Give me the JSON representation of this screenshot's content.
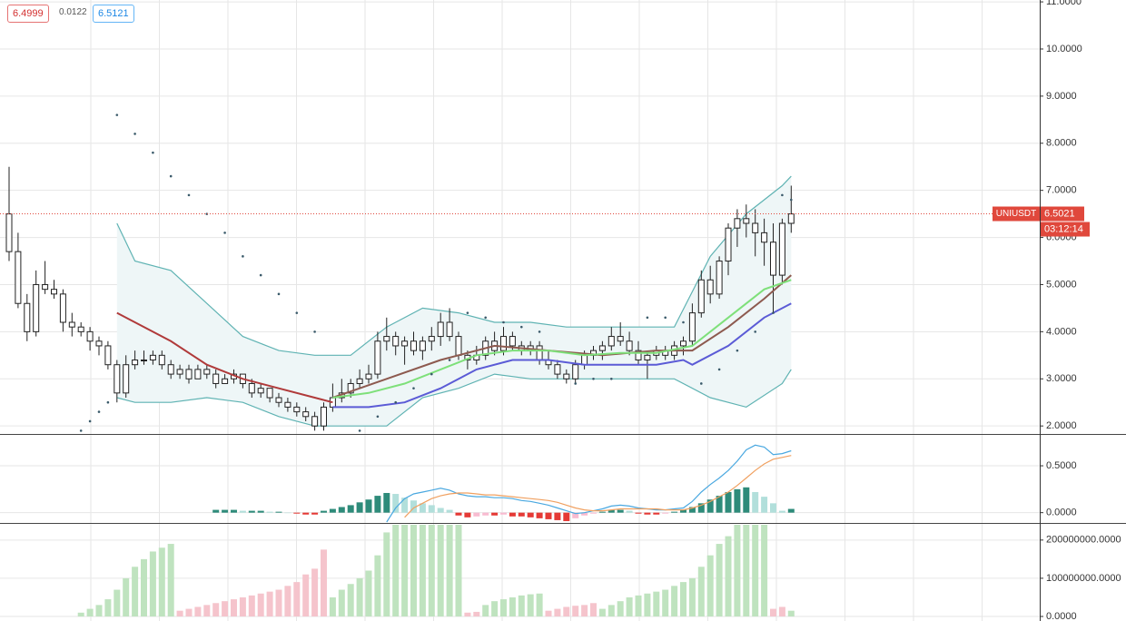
{
  "header": {
    "values": [
      "6.4999",
      "0.0122",
      "6.5121"
    ]
  },
  "chart_data": [
    {
      "type": "candlestick",
      "open": [
        6.5,
        5.7,
        4.6,
        4.0,
        5.0,
        4.9,
        4.8,
        4.2,
        4.1,
        4.0,
        3.8,
        3.7,
        3.3,
        2.7,
        3.3,
        3.4,
        3.4,
        3.5,
        3.3,
        3.1,
        3.2,
        3.0,
        3.2,
        3.1,
        2.9,
        3.0,
        3.1,
        2.9,
        2.7,
        2.8,
        2.6,
        2.5,
        2.4,
        2.3,
        2.2,
        2.0,
        2.4,
        2.6,
        2.7,
        2.9,
        3.0,
        3.1,
        3.8,
        3.9,
        3.7,
        3.8,
        3.6,
        3.8,
        3.9,
        4.2,
        3.9,
        3.5,
        3.4,
        3.5,
        3.8,
        3.6,
        3.9,
        3.7,
        3.6,
        3.7,
        3.4,
        3.3,
        3.1,
        3.0,
        3.3,
        3.5,
        3.6,
        3.7,
        3.9,
        3.8,
        3.6,
        3.4,
        3.5,
        3.6,
        3.5,
        3.7,
        3.8,
        4.4,
        5.1,
        4.8,
        5.5,
        6.2,
        6.4,
        6.3,
        6.1,
        5.9,
        5.2,
        6.3
      ],
      "high": [
        7.5,
        6.1,
        4.8,
        5.3,
        5.5,
        5.1,
        4.9,
        4.4,
        4.2,
        4.1,
        3.9,
        3.8,
        3.4,
        3.5,
        3.6,
        3.6,
        3.6,
        3.6,
        3.4,
        3.3,
        3.3,
        3.3,
        3.3,
        3.2,
        3.1,
        3.2,
        3.1,
        3.0,
        2.9,
        2.8,
        2.7,
        2.6,
        2.5,
        2.4,
        2.3,
        2.5,
        2.9,
        3.0,
        3.0,
        3.2,
        3.3,
        4.0,
        4.3,
        4.0,
        3.9,
        4.0,
        3.9,
        4.1,
        4.4,
        4.5,
        4.0,
        3.6,
        3.7,
        3.9,
        4.0,
        4.1,
        4.0,
        3.8,
        3.8,
        3.8,
        3.6,
        3.4,
        3.2,
        3.4,
        3.6,
        3.7,
        3.8,
        4.1,
        4.2,
        4.0,
        3.8,
        3.6,
        3.7,
        3.7,
        3.8,
        3.9,
        4.6,
        5.3,
        5.4,
        5.6,
        6.3,
        6.6,
        6.7,
        6.6,
        6.4,
        6.3,
        6.4,
        7.1
      ],
      "low": [
        5.5,
        4.5,
        3.8,
        3.9,
        4.8,
        4.7,
        4.0,
        3.9,
        3.9,
        3.6,
        3.5,
        3.2,
        2.5,
        2.6,
        3.2,
        3.3,
        3.3,
        3.2,
        3.0,
        3.0,
        2.9,
        3.0,
        3.0,
        2.8,
        2.9,
        2.9,
        2.8,
        2.6,
        2.6,
        2.5,
        2.4,
        2.3,
        2.2,
        2.1,
        1.9,
        1.9,
        2.3,
        2.5,
        2.6,
        2.8,
        2.9,
        3.0,
        3.6,
        3.5,
        3.3,
        3.5,
        3.4,
        3.6,
        3.7,
        3.8,
        3.4,
        3.2,
        3.3,
        3.4,
        3.5,
        3.5,
        3.6,
        3.5,
        3.5,
        3.3,
        3.2,
        3.0,
        2.9,
        2.9,
        3.2,
        3.4,
        3.4,
        3.6,
        3.7,
        3.5,
        3.3,
        3.0,
        3.4,
        3.4,
        3.4,
        3.5,
        3.7,
        4.3,
        4.6,
        4.7,
        5.2,
        5.8,
        6.0,
        5.6,
        5.4,
        4.4,
        5.0,
        6.1
      ],
      "close": [
        5.7,
        4.6,
        4.0,
        5.0,
        4.9,
        4.8,
        4.2,
        4.1,
        4.0,
        3.8,
        3.7,
        3.3,
        2.7,
        3.3,
        3.4,
        3.4,
        3.5,
        3.3,
        3.1,
        3.2,
        3.0,
        3.2,
        3.1,
        2.9,
        3.0,
        3.1,
        2.9,
        2.7,
        2.8,
        2.6,
        2.5,
        2.4,
        2.3,
        2.2,
        2.0,
        2.4,
        2.6,
        2.7,
        2.9,
        3.0,
        3.1,
        3.8,
        3.9,
        3.7,
        3.8,
        3.6,
        3.8,
        3.9,
        4.2,
        3.9,
        3.5,
        3.4,
        3.5,
        3.8,
        3.6,
        3.9,
        3.7,
        3.6,
        3.7,
        3.4,
        3.3,
        3.1,
        3.0,
        3.3,
        3.5,
        3.6,
        3.7,
        3.9,
        3.8,
        3.6,
        3.4,
        3.5,
        3.6,
        3.5,
        3.7,
        3.8,
        4.4,
        5.1,
        4.8,
        5.5,
        6.2,
        6.4,
        6.3,
        6.1,
        5.9,
        5.2,
        6.3,
        6.5
      ],
      "color": "#222222",
      "fill": "#ffffff",
      "band": {
        "color": "#5fb3b3",
        "fill": "#eef6f7",
        "x": [
          12,
          14,
          18,
          22,
          26,
          30,
          34,
          38,
          42,
          46,
          50,
          54,
          58,
          62,
          66,
          70,
          74,
          78,
          82,
          86,
          87
        ],
        "upper": [
          6.3,
          5.5,
          5.3,
          4.6,
          3.9,
          3.6,
          3.5,
          3.5,
          4.1,
          4.5,
          4.4,
          4.2,
          4.2,
          4.1,
          4.1,
          4.1,
          4.1,
          5.6,
          6.5,
          7.1,
          7.3
        ],
        "lower": [
          2.6,
          2.5,
          2.5,
          2.6,
          2.5,
          2.2,
          2.0,
          2.0,
          2.0,
          2.6,
          2.8,
          3.1,
          3.0,
          3.0,
          3.0,
          3.0,
          3.0,
          2.6,
          2.4,
          2.9,
          3.2
        ]
      },
      "series": [
        {
          "style": "line",
          "color": "#b03a3a",
          "x": [
            12,
            14,
            18,
            22,
            26,
            30,
            34,
            36
          ],
          "values": [
            4.4,
            4.2,
            3.8,
            3.3,
            3.0,
            2.8,
            2.6,
            2.5
          ]
        },
        {
          "style": "line",
          "color": "#8d5a4f",
          "x": [
            36,
            42,
            48,
            54,
            60,
            66,
            72,
            76,
            80,
            84,
            87
          ],
          "values": [
            2.6,
            3.0,
            3.4,
            3.7,
            3.6,
            3.5,
            3.6,
            3.6,
            4.1,
            4.7,
            5.2
          ]
        },
        {
          "style": "line",
          "color": "#7ee07a",
          "x": [
            36,
            40,
            44,
            48,
            52,
            56,
            60,
            64,
            68,
            72,
            76,
            80,
            84,
            87
          ],
          "values": [
            2.6,
            2.7,
            2.9,
            3.2,
            3.5,
            3.6,
            3.6,
            3.5,
            3.55,
            3.55,
            3.7,
            4.3,
            4.9,
            5.1
          ]
        },
        {
          "style": "line",
          "color": "#5b5bd6",
          "x": [
            36,
            40,
            44,
            48,
            52,
            56,
            60,
            64,
            68,
            72,
            75,
            76,
            80,
            84,
            87
          ],
          "values": [
            2.4,
            2.4,
            2.5,
            2.8,
            3.2,
            3.4,
            3.4,
            3.3,
            3.3,
            3.3,
            3.4,
            3.3,
            3.7,
            4.3,
            4.6
          ]
        },
        {
          "style": "dots",
          "color": "#3a5a6a",
          "x": [
            8,
            9,
            10,
            11,
            12,
            14,
            16,
            18,
            20,
            22,
            24,
            26,
            28,
            30,
            32,
            34,
            39,
            41,
            43,
            45,
            47,
            49,
            51,
            53,
            55,
            57,
            59,
            63,
            65,
            67,
            71,
            73,
            75,
            77,
            79,
            81,
            83,
            85,
            86,
            87
          ],
          "values": [
            1.9,
            2.1,
            2.3,
            2.5,
            8.6,
            8.2,
            7.8,
            7.3,
            6.9,
            6.5,
            6.1,
            5.6,
            5.2,
            4.8,
            4.4,
            4.0,
            1.9,
            2.2,
            2.5,
            2.8,
            3.1,
            3.4,
            4.4,
            4.3,
            4.2,
            4.1,
            4.0,
            2.9,
            3.0,
            3.0,
            4.3,
            4.3,
            4.2,
            2.9,
            3.2,
            3.6,
            4.0,
            4.4,
            6.9,
            6.8
          ]
        }
      ],
      "ylim": [
        1.83,
        11.04
      ],
      "yticks": [
        {
          "value": 2,
          "label": "2.0000"
        },
        {
          "value": 3,
          "label": "3.0000"
        },
        {
          "value": 4,
          "label": "4.0000"
        },
        {
          "value": 5,
          "label": "5.0000"
        },
        {
          "value": 6,
          "label": "6.0000"
        },
        {
          "value": 7,
          "label": "7.0000"
        },
        {
          "value": 8,
          "label": "8.0000"
        },
        {
          "value": 9,
          "label": "9.0000"
        },
        {
          "value": 10,
          "label": "10.0000"
        },
        {
          "value": 11,
          "label": "11.0000"
        }
      ],
      "grid": true,
      "last_price": {
        "symbol": "UNIUSDT",
        "value": 6.5021,
        "countdown": "03:12:14",
        "color": "#e0483c"
      }
    },
    {
      "type": "macd",
      "histogram": [
        null,
        null,
        null,
        null,
        null,
        null,
        null,
        null,
        null,
        null,
        null,
        null,
        null,
        null,
        null,
        null,
        null,
        null,
        null,
        null,
        null,
        null,
        null,
        0.03,
        0.03,
        0.03,
        0.02,
        0.02,
        0.02,
        0.01,
        0.01,
        0.0,
        -0.01,
        -0.02,
        -0.02,
        0.02,
        0.04,
        0.06,
        0.08,
        0.11,
        0.14,
        0.18,
        0.21,
        0.2,
        0.16,
        0.13,
        0.1,
        0.08,
        0.05,
        0.03,
        -0.03,
        -0.05,
        -0.04,
        -0.03,
        -0.03,
        -0.02,
        -0.04,
        -0.04,
        -0.05,
        -0.06,
        -0.07,
        -0.08,
        -0.09,
        -0.06,
        -0.03,
        -0.01,
        0.01,
        0.03,
        0.03,
        0.02,
        -0.01,
        -0.02,
        -0.02,
        -0.01,
        0.01,
        0.03,
        0.06,
        0.1,
        0.14,
        0.18,
        0.22,
        0.25,
        0.27,
        0.22,
        0.17,
        0.1,
        0.02,
        0.04
      ],
      "colors": [
        "#2e8b7a",
        "#b2dfdb",
        "#e53935",
        "#f8bbd0"
      ],
      "series": [
        {
          "color": "#4aa8e0",
          "values": [
            null,
            null,
            null,
            null,
            null,
            null,
            null,
            null,
            null,
            null,
            null,
            null,
            null,
            null,
            null,
            null,
            null,
            null,
            null,
            null,
            null,
            null,
            null,
            null,
            null,
            null,
            null,
            null,
            null,
            null,
            null,
            null,
            null,
            null,
            null,
            null,
            null,
            null,
            null,
            null,
            null,
            null,
            -0.1,
            0.05,
            0.15,
            0.2,
            0.22,
            0.24,
            0.26,
            0.24,
            0.2,
            0.18,
            0.17,
            0.17,
            0.16,
            0.16,
            0.15,
            0.13,
            0.12,
            0.1,
            0.08,
            0.05,
            0.02,
            -0.01,
            0.0,
            0.02,
            0.04,
            0.07,
            0.08,
            0.07,
            0.05,
            0.04,
            0.03,
            0.03,
            0.04,
            0.05,
            0.12,
            0.22,
            0.3,
            0.37,
            0.45,
            0.55,
            0.67,
            0.72,
            0.7,
            0.62,
            0.63,
            0.66
          ]
        },
        {
          "color": "#f0a060",
          "values": [
            null,
            null,
            null,
            null,
            null,
            null,
            null,
            null,
            null,
            null,
            null,
            null,
            null,
            null,
            null,
            null,
            null,
            null,
            null,
            null,
            null,
            null,
            null,
            null,
            null,
            null,
            null,
            null,
            null,
            null,
            null,
            null,
            null,
            null,
            null,
            null,
            null,
            null,
            null,
            null,
            null,
            null,
            null,
            null,
            -0.05,
            0.05,
            0.1,
            0.15,
            0.18,
            0.2,
            0.21,
            0.21,
            0.2,
            0.19,
            0.19,
            0.18,
            0.17,
            0.16,
            0.15,
            0.14,
            0.13,
            0.11,
            0.08,
            0.05,
            0.03,
            0.02,
            0.02,
            0.03,
            0.04,
            0.04,
            0.04,
            0.04,
            0.04,
            0.03,
            0.03,
            0.03,
            0.05,
            0.08,
            0.12,
            0.17,
            0.22,
            0.29,
            0.37,
            0.45,
            0.52,
            0.57,
            0.59,
            0.61
          ]
        }
      ],
      "ylim": [
        -0.1,
        0.82
      ],
      "yticks": [
        {
          "value": 0,
          "label": "0.0000"
        },
        {
          "value": 0.5,
          "label": "0.5000"
        }
      ]
    },
    {
      "type": "bar",
      "series": [
        {
          "color": "#bfe3bf",
          "values": [
            null,
            null,
            null,
            null,
            null,
            null,
            null,
            null,
            10000000,
            20000000,
            30000000,
            45000000,
            70000000,
            100000000,
            130000000,
            150000000,
            170000000,
            180000000,
            190000000,
            null,
            null,
            null,
            null,
            null,
            null,
            null,
            null,
            null,
            null,
            null,
            null,
            null,
            null,
            null,
            null,
            null,
            50000000,
            70000000,
            85000000,
            100000000,
            120000000,
            160000000,
            220000000,
            260000000,
            260000000,
            260000000,
            260000000,
            260000000,
            260000000,
            260000000,
            260000000,
            null,
            null,
            30000000,
            40000000,
            45000000,
            50000000,
            55000000,
            58000000,
            60000000,
            null,
            null,
            null,
            null,
            null,
            null,
            20000000,
            30000000,
            40000000,
            50000000,
            55000000,
            60000000,
            65000000,
            70000000,
            80000000,
            90000000,
            100000000,
            130000000,
            160000000,
            190000000,
            210000000,
            240000000,
            260000000,
            260000000,
            260000000,
            null,
            null,
            15000000
          ]
        },
        {
          "color": "#f5c4cc",
          "values": [
            null,
            null,
            null,
            null,
            null,
            null,
            null,
            null,
            null,
            null,
            null,
            null,
            null,
            null,
            null,
            null,
            null,
            null,
            null,
            15000000,
            20000000,
            25000000,
            30000000,
            35000000,
            40000000,
            45000000,
            50000000,
            55000000,
            60000000,
            65000000,
            70000000,
            80000000,
            90000000,
            110000000,
            125000000,
            175000000,
            null,
            null,
            null,
            null,
            null,
            null,
            null,
            null,
            null,
            null,
            null,
            null,
            null,
            null,
            null,
            10000000,
            12000000,
            null,
            null,
            null,
            null,
            null,
            null,
            null,
            15000000,
            20000000,
            25000000,
            28000000,
            30000000,
            35000000,
            null,
            null,
            null,
            null,
            null,
            null,
            null,
            null,
            null,
            null,
            null,
            null,
            null,
            null,
            null,
            null,
            null,
            null,
            null,
            20000000,
            25000000,
            null
          ]
        }
      ],
      "ylim": [
        0,
        240000000
      ],
      "yticks": [
        {
          "value": 0,
          "label": "0.0000"
        },
        {
          "value": 100000000,
          "label": "100000000.0000"
        },
        {
          "value": 200000000,
          "label": "200000000.0000"
        }
      ]
    }
  ]
}
